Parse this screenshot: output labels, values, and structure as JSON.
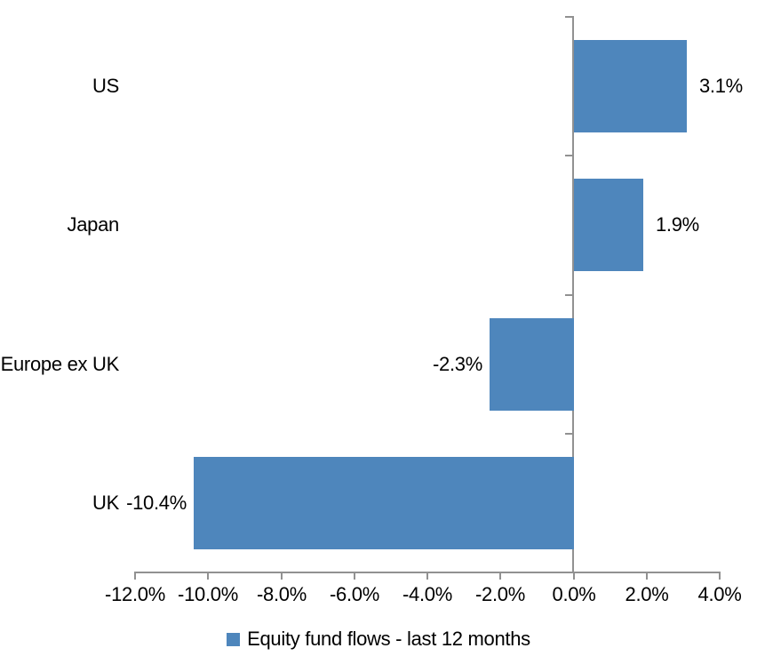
{
  "chart_data": {
    "type": "bar",
    "orientation": "horizontal",
    "title": "",
    "xlabel": "",
    "ylabel": "",
    "categories": [
      "US",
      "Japan",
      "Europe ex UK",
      "UK"
    ],
    "values": [
      3.1,
      1.9,
      -2.3,
      -10.4
    ],
    "data_labels": [
      "3.1%",
      "1.9%",
      "-2.3%",
      "-10.4%"
    ],
    "series_name": "Equity fund flows - last 12 months",
    "xlim": [
      -12,
      4
    ],
    "x_ticks": [
      -12,
      -10,
      -8,
      -6,
      -4,
      -2,
      0,
      2,
      4
    ],
    "x_tick_labels": [
      "-12.0%",
      "-10.0%",
      "-8.0%",
      "-6.0%",
      "-4.0%",
      "-2.0%",
      "0.0%",
      "2.0%",
      "4.0%"
    ],
    "grid": "off",
    "legend_position": "bottom",
    "colors": {
      "bar": "#4E86BC",
      "axis": "#919191",
      "text": "#000000",
      "background": "#FFFFFF"
    }
  }
}
